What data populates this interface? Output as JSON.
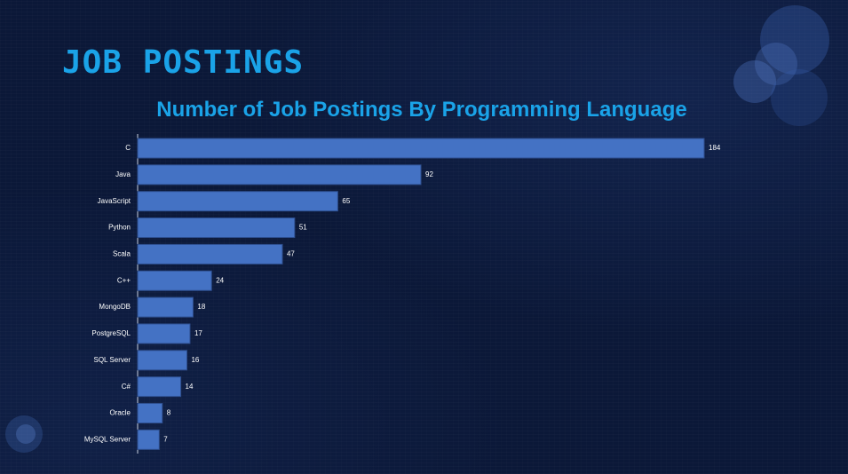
{
  "slide": {
    "title": "JOB POSTINGS"
  },
  "chart_data": {
    "type": "bar",
    "orientation": "horizontal",
    "title": "Number of Job Postings By Programming Language",
    "xlabel": "",
    "ylabel": "",
    "categories": [
      "C",
      "Java",
      "JavaScript",
      "Python",
      "Scala",
      "C++",
      "MongoDB",
      "PostgreSQL",
      "SQL Server",
      "C#",
      "Oracle",
      "MySQL Server"
    ],
    "values": [
      184,
      92,
      65,
      51,
      47,
      24,
      18,
      17,
      16,
      14,
      8,
      7
    ],
    "xlim": [
      0,
      184
    ],
    "grid": false,
    "legend": "none",
    "data_labels": true
  },
  "colors": {
    "background": "#0b1838",
    "title": "#1aa3e8",
    "bar_fill": "#4472c4",
    "bar_stroke": "#2e4f8f",
    "axis": "#c8d0e0",
    "label_text": "#ffffff"
  }
}
